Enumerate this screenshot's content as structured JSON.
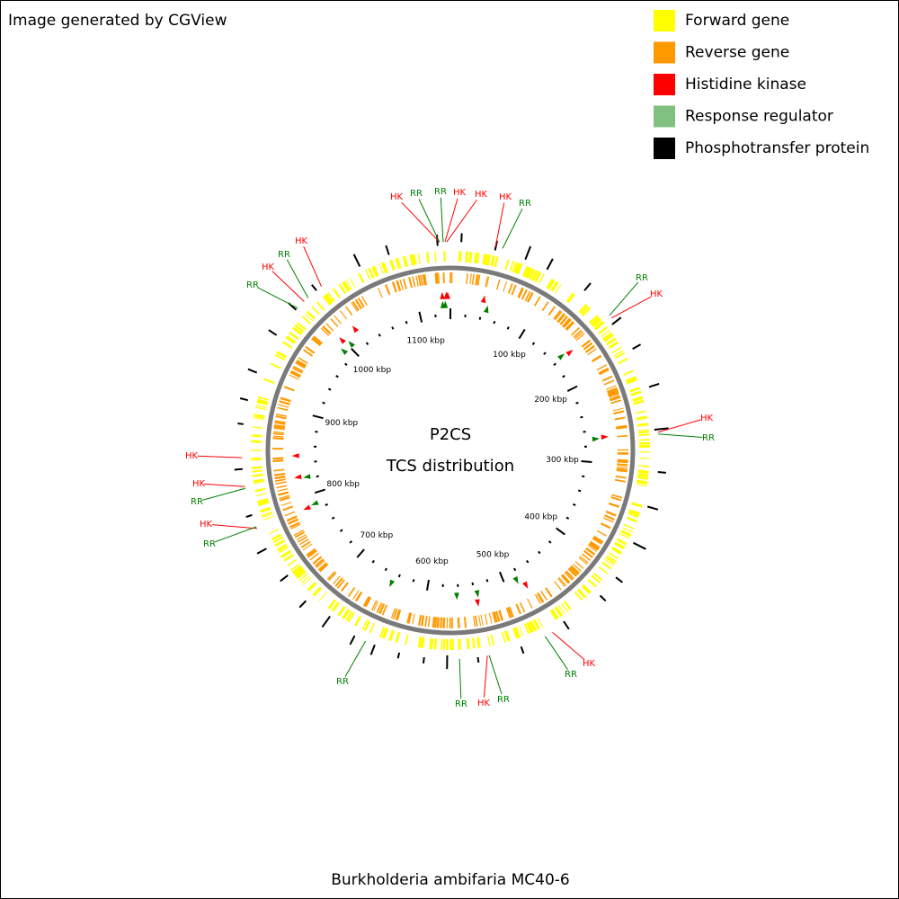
{
  "header": {
    "credit": "Image generated by CGView"
  },
  "legend": {
    "items": [
      {
        "label": "Forward gene",
        "color": "#ffff00"
      },
      {
        "label": "Reverse gene",
        "color": "#ff9900"
      },
      {
        "label": "Histidine kinase",
        "color": "#ff0000"
      },
      {
        "label": "Response regulator",
        "color": "#80c080"
      },
      {
        "label": "Phosphotransfer protein",
        "color": "#000000"
      }
    ]
  },
  "center": {
    "title": "P2CS",
    "subtitle": "TCS distribution"
  },
  "scale": {
    "labels": [
      "100 kbp",
      "200 kbp",
      "300 kbp",
      "400 kbp",
      "500 kbp",
      "600 kbp",
      "700 kbp",
      "800 kbp",
      "900 kbp",
      "1000 kbp",
      "1100 kbp"
    ]
  },
  "callouts": [
    "HK",
    "RR",
    "RR",
    "HK",
    "HK",
    "HK",
    "RR",
    "RR",
    "HK",
    "HK",
    "RR",
    "HK",
    "RR",
    "HK",
    "RR",
    "RR",
    "RR",
    "HK",
    "RR",
    "HK",
    "RR",
    "HK",
    "RR",
    "HK",
    "RR",
    "HK"
  ],
  "footer": {
    "organism": "Burkholderia ambifaria MC40-6"
  }
}
